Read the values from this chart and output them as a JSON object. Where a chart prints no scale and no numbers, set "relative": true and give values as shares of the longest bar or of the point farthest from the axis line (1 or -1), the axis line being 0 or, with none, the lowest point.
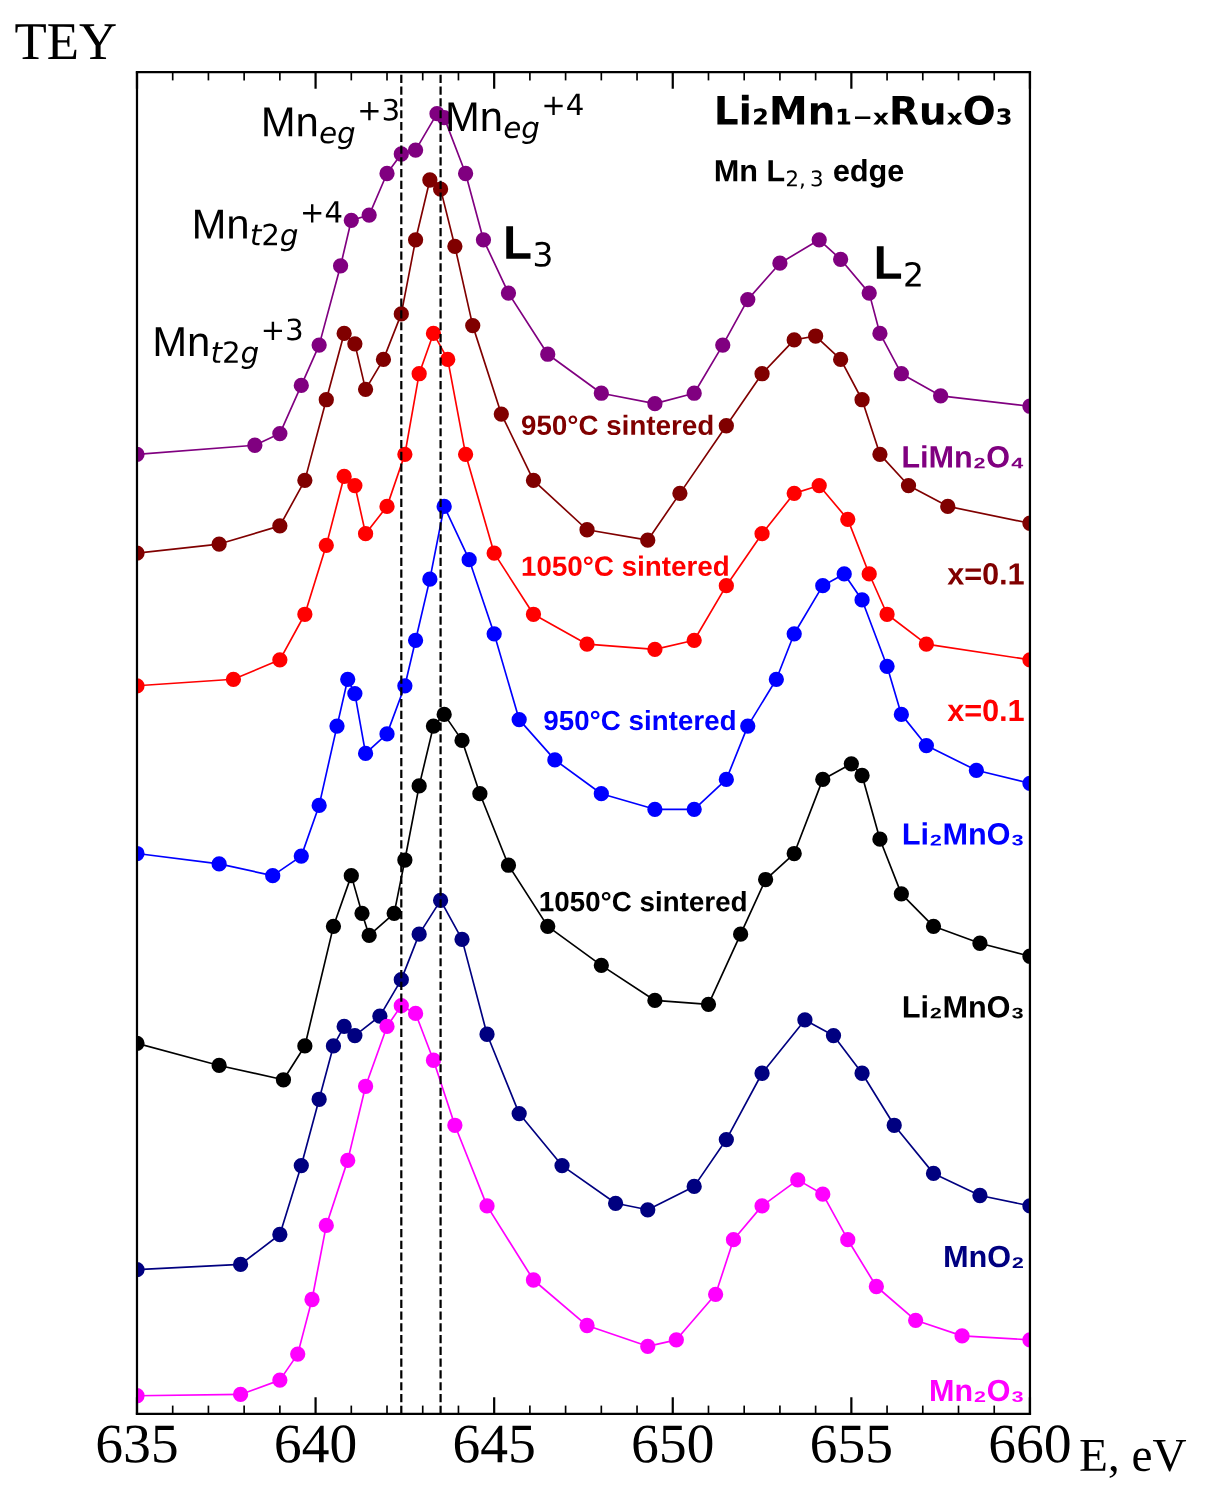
{
  "chart_data": {
    "type": "line",
    "relative": true,
    "title": "Li₂Mn₁₋ₓRuₓO₃",
    "subtitle": "Mn L$_{2,3}$ edge",
    "xlabel": "E, eV",
    "ylabel": "TEY",
    "xlim": [
      635,
      660
    ],
    "xticks": [
      635,
      640,
      645,
      650,
      655,
      660
    ],
    "tick_labels": "x",
    "grid": false,
    "legend": false,
    "marker": "circle",
    "line_style": "solid",
    "ref_lines": [
      {
        "axis": "x",
        "value": 642.4,
        "color": "#000000",
        "line_style": "dashed"
      },
      {
        "axis": "x",
        "value": 643.5,
        "color": "#000000",
        "line_style": "dashed"
      }
    ],
    "series": [
      {
        "name": "LiMn₂O₄",
        "color": "#800080",
        "x": [
          635,
          638.3,
          639.0,
          639.6,
          640.1,
          640.7,
          641.0,
          641.5,
          642.0,
          642.4,
          642.8,
          643.4,
          643.6,
          644.2,
          644.7,
          645.4,
          646.5,
          648.0,
          649.5,
          650.6,
          651.4,
          652.1,
          653.0,
          654.1,
          654.7,
          655.5,
          655.8,
          656.4,
          657.5,
          660
        ],
        "values": [
          0.738,
          0.745,
          0.754,
          0.791,
          0.822,
          0.883,
          0.918,
          0.922,
          0.954,
          0.969,
          0.972,
          1.0,
          0.997,
          0.954,
          0.903,
          0.862,
          0.815,
          0.785,
          0.777,
          0.785,
          0.822,
          0.857,
          0.885,
          0.903,
          0.888,
          0.862,
          0.831,
          0.8,
          0.783,
          0.775
        ]
      },
      {
        "name": "x=0.1",
        "color": "#800000",
        "x": [
          635,
          637.3,
          639.0,
          639.7,
          640.3,
          640.8,
          641.1,
          641.4,
          641.9,
          642.4,
          642.8,
          643.2,
          643.5,
          643.9,
          644.4,
          645.2,
          646.1,
          647.6,
          649.3,
          650.2,
          651.5,
          652.5,
          653.4,
          654.0,
          654.7,
          655.3,
          655.8,
          656.6,
          657.7,
          660
        ],
        "values": [
          0.662,
          0.669,
          0.683,
          0.718,
          0.78,
          0.831,
          0.823,
          0.788,
          0.811,
          0.846,
          0.903,
          0.949,
          0.942,
          0.898,
          0.837,
          0.769,
          0.718,
          0.68,
          0.672,
          0.708,
          0.76,
          0.8,
          0.826,
          0.829,
          0.811,
          0.78,
          0.738,
          0.714,
          0.698,
          0.685
        ]
      },
      {
        "name": "x=0.1",
        "color": "#ff0000",
        "x": [
          635,
          637.7,
          639.0,
          639.7,
          640.3,
          640.8,
          641.1,
          641.4,
          642.0,
          642.5,
          642.9,
          643.3,
          643.7,
          644.2,
          645.0,
          646.1,
          647.6,
          649.5,
          650.6,
          651.5,
          652.5,
          653.4,
          654.1,
          654.9,
          655.5,
          656.0,
          657.1,
          660
        ],
        "values": [
          0.56,
          0.565,
          0.58,
          0.615,
          0.668,
          0.721,
          0.714,
          0.677,
          0.698,
          0.738,
          0.8,
          0.831,
          0.811,
          0.738,
          0.662,
          0.615,
          0.592,
          0.588,
          0.595,
          0.637,
          0.677,
          0.708,
          0.714,
          0.688,
          0.646,
          0.615,
          0.592,
          0.58
        ]
      },
      {
        "name": "Li₂MnO₃",
        "color": "#0000ff",
        "x": [
          635,
          637.3,
          638.8,
          639.6,
          640.1,
          640.6,
          640.9,
          641.1,
          641.4,
          642.0,
          642.5,
          642.8,
          643.2,
          643.6,
          644.3,
          645.0,
          645.7,
          646.7,
          648.0,
          649.5,
          650.6,
          651.5,
          652.1,
          652.9,
          653.4,
          654.2,
          654.8,
          655.3,
          656.0,
          656.4,
          657.1,
          658.5,
          660
        ],
        "values": [
          0.431,
          0.423,
          0.414,
          0.429,
          0.468,
          0.529,
          0.565,
          0.554,
          0.508,
          0.523,
          0.56,
          0.595,
          0.642,
          0.698,
          0.657,
          0.6,
          0.534,
          0.503,
          0.477,
          0.465,
          0.465,
          0.488,
          0.529,
          0.565,
          0.6,
          0.637,
          0.646,
          0.626,
          0.575,
          0.538,
          0.514,
          0.495,
          0.485
        ]
      },
      {
        "name": "Li₂MnO₃",
        "color": "#000000",
        "x": [
          635,
          637.3,
          639.1,
          639.7,
          640.5,
          641.0,
          641.3,
          641.5,
          642.2,
          642.5,
          642.9,
          643.3,
          643.6,
          644.1,
          644.6,
          645.4,
          646.5,
          648.0,
          649.5,
          651.0,
          651.9,
          652.6,
          653.4,
          654.2,
          655.0,
          655.3,
          655.8,
          656.4,
          657.3,
          658.6,
          660
        ],
        "values": [
          0.285,
          0.268,
          0.257,
          0.283,
          0.375,
          0.414,
          0.385,
          0.368,
          0.385,
          0.426,
          0.483,
          0.529,
          0.538,
          0.518,
          0.477,
          0.422,
          0.375,
          0.345,
          0.318,
          0.315,
          0.369,
          0.411,
          0.431,
          0.488,
          0.5,
          0.491,
          0.442,
          0.4,
          0.375,
          0.362,
          0.352
        ]
      },
      {
        "name": "MnO₂",
        "color": "#000080",
        "x": [
          635,
          637.9,
          639.0,
          639.6,
          640.1,
          640.5,
          640.8,
          641.1,
          641.8,
          642.4,
          642.9,
          643.5,
          644.1,
          644.8,
          645.7,
          646.9,
          648.4,
          649.3,
          650.6,
          651.5,
          652.5,
          653.7,
          654.5,
          655.3,
          656.2,
          657.3,
          658.6,
          660
        ],
        "values": [
          0.111,
          0.115,
          0.138,
          0.191,
          0.242,
          0.283,
          0.298,
          0.291,
          0.306,
          0.334,
          0.369,
          0.395,
          0.365,
          0.292,
          0.231,
          0.191,
          0.162,
          0.157,
          0.175,
          0.211,
          0.262,
          0.303,
          0.291,
          0.262,
          0.222,
          0.185,
          0.168,
          0.16
        ]
      },
      {
        "name": "Mn₂O₃",
        "color": "#ff00ff",
        "x": [
          635,
          637.9,
          639.0,
          639.5,
          639.9,
          640.3,
          640.9,
          641.4,
          642.0,
          642.4,
          642.8,
          643.3,
          643.9,
          644.8,
          646.1,
          647.6,
          649.3,
          650.1,
          651.2,
          651.7,
          652.5,
          653.5,
          654.2,
          654.9,
          655.7,
          656.8,
          658.1,
          660
        ],
        "values": [
          0.014,
          0.015,
          0.026,
          0.046,
          0.088,
          0.145,
          0.195,
          0.252,
          0.298,
          0.314,
          0.308,
          0.272,
          0.222,
          0.16,
          0.103,
          0.068,
          0.052,
          0.057,
          0.092,
          0.134,
          0.16,
          0.18,
          0.169,
          0.134,
          0.098,
          0.072,
          0.06,
          0.057
        ]
      }
    ],
    "annotations": [
      {
        "text": "Mn$_{eg}$$^{+3}$",
        "x": 642.4,
        "y": 0.992
      },
      "Mn$_{eg}$$^{+4}$",
      "Mn$_{t2g}$$^{+4}$",
      {
        "text": "Mn$_{t2g}$$^{+3}$",
        "x": 639.7,
        "y": 0.823
      },
      "L$_{3}$",
      "L$_{2}$",
      "950°C sintered",
      "1050°C sintered",
      "950°C sintered",
      "1050°C sintered"
    ]
  }
}
